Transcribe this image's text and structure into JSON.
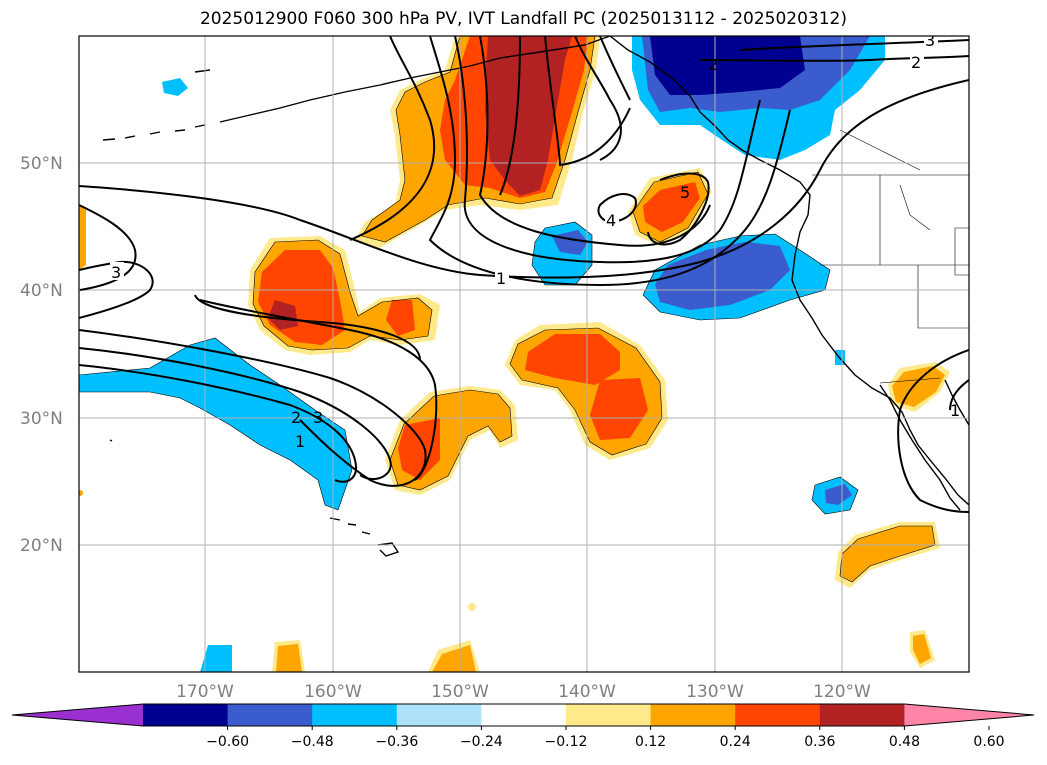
{
  "title": "2025012900 F060 300 hPa PV, IVT Landfall PC (2025013112 - 2025020312)",
  "lat_labels": [
    "50°N",
    "40°N",
    "30°N",
    "20°N"
  ],
  "lon_labels": [
    "170°W",
    "160°W",
    "150°W",
    "140°W",
    "130°W",
    "120°W"
  ],
  "colorbar": {
    "ticks": [
      "−0.60",
      "−0.48",
      "−0.36",
      "−0.24",
      "−0.12",
      "0.12",
      "0.24",
      "0.36",
      "0.48",
      "0.60"
    ],
    "colors": [
      "#9b30d0",
      "#000090",
      "#3a5ccc",
      "#00bfff",
      "#aee2fb",
      "#ffffff",
      "#ffe98a",
      "#ffa500",
      "#ff4500",
      "#b22222",
      "#ff85a8"
    ]
  },
  "contour_labels": [
    "3",
    "2",
    "1",
    "4",
    "5",
    "3",
    "2",
    "3",
    "1",
    "2",
    "1"
  ]
}
